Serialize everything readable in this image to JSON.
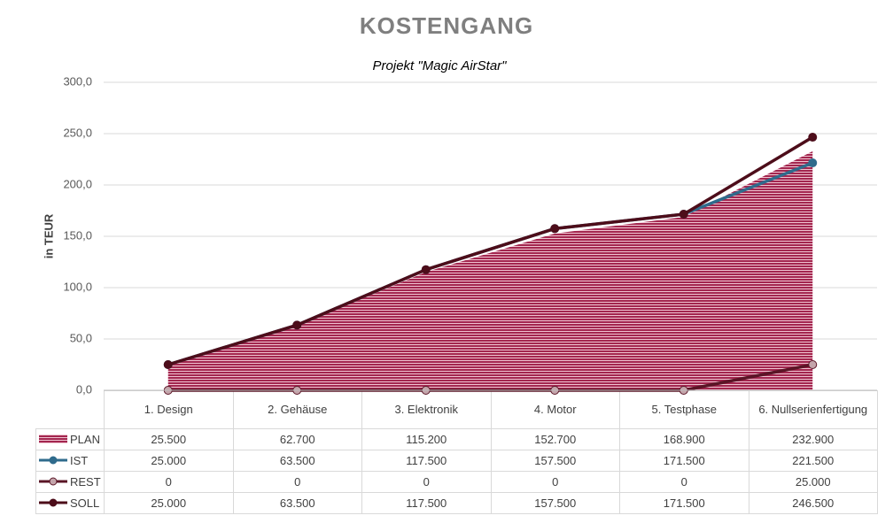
{
  "chart_data": {
    "type": "line",
    "title": "KOSTENGANG",
    "subtitle": "Projekt \"Magic AirStar\"",
    "y_label": "in TEUR",
    "categories": [
      "1. Design",
      "2. Gehäuse",
      "3. Elektronik",
      "4. Motor",
      "5. Testphase",
      "6. Nullserienfertigung"
    ],
    "series": [
      {
        "name": "PLAN",
        "kind": "area",
        "color": "#a3264f",
        "values": [
          25.5,
          62.7,
          115.2,
          152.7,
          168.9,
          232.9
        ],
        "value_labels": [
          "25.500",
          "62.700",
          "115.200",
          "152.700",
          "168.900",
          "232.900"
        ]
      },
      {
        "name": "IST",
        "kind": "line",
        "color": "#2f6b8c",
        "marker_color": "#2f6b8c",
        "values": [
          25.0,
          63.5,
          117.5,
          157.5,
          171.5,
          221.5
        ],
        "value_labels": [
          "25.000",
          "63.500",
          "117.500",
          "157.500",
          "171.500",
          "221.500"
        ]
      },
      {
        "name": "REST",
        "kind": "line",
        "color": "#5a1526",
        "marker_color": "#c4a5ab",
        "values": [
          0,
          0,
          0,
          0,
          0,
          25.0
        ],
        "value_labels": [
          "0",
          "0",
          "0",
          "0",
          "0",
          "25.000"
        ]
      },
      {
        "name": "SOLL",
        "kind": "line",
        "color": "#4d0d1a",
        "marker_color": "#4d0d1a",
        "values": [
          25.0,
          63.5,
          117.5,
          157.5,
          171.5,
          246.5
        ],
        "value_labels": [
          "25.000",
          "63.500",
          "117.500",
          "157.500",
          "171.500",
          "246.500"
        ]
      }
    ],
    "ylim": [
      0,
      300
    ],
    "yticks": [
      {
        "value": 0,
        "label": "0,0"
      },
      {
        "value": 50,
        "label": "50,0"
      },
      {
        "value": 100,
        "label": "100,0"
      },
      {
        "value": 150,
        "label": "150,0"
      },
      {
        "value": 200,
        "label": "200,0"
      },
      {
        "value": 250,
        "label": "250,0"
      },
      {
        "value": 300,
        "label": "300,0"
      }
    ],
    "grid": true
  }
}
